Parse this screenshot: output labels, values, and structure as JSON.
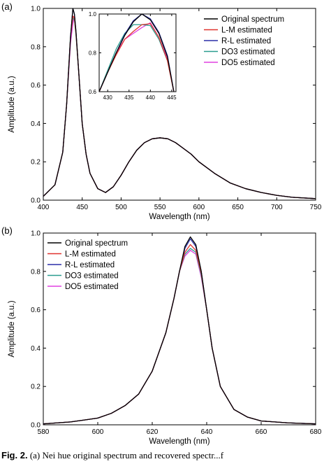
{
  "figure_caption": {
    "fig_label": "Fig. 2.",
    "text": "(a) Nei hue original spectrum and recovered spectr...f"
  },
  "chart_data": [
    {
      "panel_label": "(a)",
      "type": "line",
      "xlabel": "Wavelength (nm)",
      "ylabel": "Amplitude (a.u.)",
      "xlim": [
        400,
        750
      ],
      "ylim": [
        0,
        1.0
      ],
      "xticks": [
        400,
        450,
        500,
        550,
        600,
        650,
        700,
        750
      ],
      "yticks": [
        0.0,
        0.2,
        0.4,
        0.6,
        0.8,
        1.0
      ],
      "legend_position": "top-right",
      "series": [
        {
          "name": "Original spectrum",
          "color": "#000000",
          "x": [
            400,
            415,
            425,
            430,
            435,
            438,
            440,
            442,
            445,
            450,
            455,
            460,
            470,
            480,
            490,
            500,
            510,
            520,
            530,
            540,
            550,
            560,
            570,
            580,
            590,
            600,
            620,
            640,
            660,
            680,
            700,
            720,
            750
          ],
          "y": [
            0.02,
            0.08,
            0.25,
            0.5,
            0.85,
            1.0,
            0.97,
            0.88,
            0.7,
            0.4,
            0.24,
            0.14,
            0.06,
            0.04,
            0.07,
            0.13,
            0.2,
            0.26,
            0.3,
            0.32,
            0.325,
            0.32,
            0.3,
            0.27,
            0.24,
            0.2,
            0.14,
            0.09,
            0.06,
            0.04,
            0.025,
            0.015,
            0.008
          ]
        },
        {
          "name": "L-M estimated",
          "color": "#e0322e",
          "x": [
            400,
            415,
            425,
            430,
            435,
            438,
            440,
            442,
            445,
            450,
            455,
            460,
            470,
            480,
            490,
            500,
            510,
            520,
            530,
            540,
            550,
            560,
            570,
            580,
            590,
            600,
            620,
            640,
            660,
            680,
            700,
            720,
            750
          ],
          "y": [
            0.02,
            0.08,
            0.25,
            0.5,
            0.85,
            0.96,
            0.95,
            0.87,
            0.7,
            0.4,
            0.24,
            0.14,
            0.06,
            0.04,
            0.07,
            0.13,
            0.2,
            0.26,
            0.3,
            0.32,
            0.325,
            0.32,
            0.3,
            0.27,
            0.24,
            0.2,
            0.14,
            0.09,
            0.06,
            0.04,
            0.025,
            0.015,
            0.008
          ]
        },
        {
          "name": "R-L estimated",
          "color": "#2b2fa8",
          "x": [
            400,
            415,
            425,
            430,
            435,
            438,
            440,
            442,
            445,
            450,
            455,
            460,
            470,
            480,
            490,
            500,
            510,
            520,
            530,
            540,
            550,
            560,
            570,
            580,
            590,
            600,
            620,
            640,
            660,
            680,
            700,
            720,
            750
          ],
          "y": [
            0.02,
            0.08,
            0.25,
            0.5,
            0.85,
            1.0,
            0.97,
            0.88,
            0.7,
            0.4,
            0.24,
            0.14,
            0.06,
            0.04,
            0.07,
            0.13,
            0.2,
            0.26,
            0.3,
            0.32,
            0.325,
            0.32,
            0.3,
            0.27,
            0.24,
            0.2,
            0.14,
            0.09,
            0.06,
            0.04,
            0.025,
            0.015,
            0.008
          ]
        },
        {
          "name": "DO3 estimated",
          "color": "#2a9d8f",
          "x": [
            400,
            415,
            425,
            430,
            435,
            438,
            440,
            442,
            445,
            450,
            455,
            460,
            470,
            480,
            490,
            500,
            510,
            520,
            530,
            540,
            550,
            560,
            570,
            580,
            590,
            600,
            620,
            640,
            660,
            680,
            700,
            720,
            750
          ],
          "y": [
            0.02,
            0.08,
            0.25,
            0.5,
            0.86,
            0.95,
            0.94,
            0.86,
            0.7,
            0.4,
            0.24,
            0.14,
            0.06,
            0.04,
            0.07,
            0.13,
            0.2,
            0.26,
            0.3,
            0.32,
            0.325,
            0.32,
            0.3,
            0.27,
            0.24,
            0.2,
            0.14,
            0.09,
            0.06,
            0.04,
            0.025,
            0.015,
            0.008
          ]
        },
        {
          "name": "DO5 estimated",
          "color": "#e040e0",
          "x": [
            400,
            415,
            425,
            430,
            435,
            438,
            440,
            442,
            445,
            450,
            455,
            460,
            470,
            480,
            490,
            500,
            510,
            520,
            530,
            540,
            550,
            560,
            570,
            580,
            590,
            600,
            620,
            640,
            660,
            680,
            700,
            720,
            750
          ],
          "y": [
            0.02,
            0.08,
            0.25,
            0.5,
            0.82,
            0.92,
            0.96,
            0.87,
            0.7,
            0.4,
            0.24,
            0.14,
            0.06,
            0.04,
            0.07,
            0.13,
            0.2,
            0.26,
            0.3,
            0.32,
            0.325,
            0.32,
            0.3,
            0.27,
            0.24,
            0.2,
            0.14,
            0.09,
            0.06,
            0.04,
            0.025,
            0.015,
            0.008
          ]
        }
      ],
      "inset": {
        "xlim": [
          428,
          446
        ],
        "ylim": [
          0.6,
          1.0
        ],
        "xticks": [
          430,
          435,
          440,
          445
        ],
        "yticks": [
          0.6,
          0.8,
          1.0
        ],
        "series": [
          {
            "name": "Original spectrum",
            "color": "#000000",
            "x": [
              428,
              430,
              432,
              434,
              436,
              438,
              440,
              442,
              444,
              445.5
            ],
            "y": [
              0.6,
              0.7,
              0.8,
              0.89,
              0.96,
              1.0,
              0.97,
              0.9,
              0.78,
              0.6
            ]
          },
          {
            "name": "L-M estimated",
            "color": "#e0322e",
            "x": [
              428,
              430,
              432,
              434,
              436,
              438,
              440,
              442,
              444,
              445.5
            ],
            "y": [
              0.6,
              0.7,
              0.79,
              0.87,
              0.91,
              0.945,
              0.95,
              0.88,
              0.76,
              0.6
            ]
          },
          {
            "name": "R-L estimated",
            "color": "#2b2fa8",
            "x": [
              428,
              430,
              432,
              434,
              436,
              438,
              440,
              442,
              444,
              445.5
            ],
            "y": [
              0.6,
              0.7,
              0.8,
              0.895,
              0.965,
              1.0,
              0.975,
              0.905,
              0.785,
              0.6
            ]
          },
          {
            "name": "DO3 estimated",
            "color": "#2a9d8f",
            "x": [
              428,
              430,
              432,
              434,
              436,
              438,
              440,
              442,
              444,
              445.5
            ],
            "y": [
              0.6,
              0.71,
              0.82,
              0.9,
              0.945,
              0.945,
              0.94,
              0.87,
              0.76,
              0.6
            ]
          },
          {
            "name": "DO5 estimated",
            "color": "#e040e0",
            "x": [
              428,
              430,
              432,
              434,
              436,
              438,
              440,
              442,
              444,
              445.5
            ],
            "y": [
              0.6,
              0.7,
              0.8,
              0.87,
              0.9,
              0.93,
              0.955,
              0.88,
              0.77,
              0.6
            ]
          }
        ]
      }
    },
    {
      "panel_label": "(b)",
      "type": "line",
      "xlabel": "Wavelength (nm)",
      "ylabel": "Amplitude (a.u.)",
      "xlim": [
        580,
        680
      ],
      "ylim": [
        0,
        1.0
      ],
      "xticks": [
        580,
        600,
        620,
        640,
        660,
        680
      ],
      "yticks": [
        0.0,
        0.2,
        0.4,
        0.6,
        0.8,
        1.0
      ],
      "legend_position": "top-left",
      "series": [
        {
          "name": "Original spectrum",
          "color": "#000000",
          "x": [
            580,
            590,
            600,
            605,
            610,
            615,
            620,
            625,
            628,
            630,
            632,
            634,
            636,
            638,
            640,
            642,
            645,
            650,
            655,
            660,
            670,
            680
          ],
          "y": [
            0.005,
            0.015,
            0.035,
            0.06,
            0.1,
            0.16,
            0.28,
            0.48,
            0.66,
            0.8,
            0.93,
            0.98,
            0.94,
            0.8,
            0.6,
            0.4,
            0.2,
            0.08,
            0.04,
            0.02,
            0.01,
            0.005
          ]
        },
        {
          "name": "L-M estimated",
          "color": "#e0322e",
          "x": [
            580,
            590,
            600,
            605,
            610,
            615,
            620,
            625,
            628,
            630,
            632,
            634,
            636,
            638,
            640,
            642,
            645,
            650,
            655,
            660,
            670,
            680
          ],
          "y": [
            0.005,
            0.015,
            0.035,
            0.06,
            0.1,
            0.16,
            0.28,
            0.48,
            0.66,
            0.8,
            0.9,
            0.94,
            0.91,
            0.79,
            0.6,
            0.4,
            0.2,
            0.08,
            0.04,
            0.02,
            0.01,
            0.005
          ]
        },
        {
          "name": "R-L estimated",
          "color": "#2b2fa8",
          "x": [
            580,
            590,
            600,
            605,
            610,
            615,
            620,
            625,
            628,
            630,
            632,
            634,
            636,
            638,
            640,
            642,
            645,
            650,
            655,
            660,
            670,
            680
          ],
          "y": [
            0.005,
            0.015,
            0.035,
            0.06,
            0.1,
            0.16,
            0.28,
            0.48,
            0.66,
            0.8,
            0.92,
            0.97,
            0.93,
            0.8,
            0.6,
            0.4,
            0.2,
            0.08,
            0.04,
            0.02,
            0.01,
            0.005
          ]
        },
        {
          "name": "DO3 estimated",
          "color": "#2a9d8f",
          "x": [
            580,
            590,
            600,
            605,
            610,
            615,
            620,
            625,
            628,
            630,
            632,
            634,
            636,
            638,
            640,
            642,
            645,
            650,
            655,
            660,
            670,
            680
          ],
          "y": [
            0.005,
            0.015,
            0.035,
            0.06,
            0.1,
            0.16,
            0.28,
            0.48,
            0.66,
            0.8,
            0.89,
            0.92,
            0.9,
            0.78,
            0.6,
            0.4,
            0.2,
            0.08,
            0.04,
            0.02,
            0.01,
            0.005
          ]
        },
        {
          "name": "DO5 estimated",
          "color": "#e040e0",
          "x": [
            580,
            590,
            600,
            605,
            610,
            615,
            620,
            625,
            628,
            630,
            632,
            634,
            636,
            638,
            640,
            642,
            645,
            650,
            655,
            660,
            670,
            680
          ],
          "y": [
            0.005,
            0.015,
            0.035,
            0.06,
            0.1,
            0.16,
            0.28,
            0.48,
            0.66,
            0.8,
            0.88,
            0.91,
            0.89,
            0.77,
            0.6,
            0.4,
            0.2,
            0.08,
            0.04,
            0.02,
            0.01,
            0.005
          ]
        }
      ]
    }
  ]
}
